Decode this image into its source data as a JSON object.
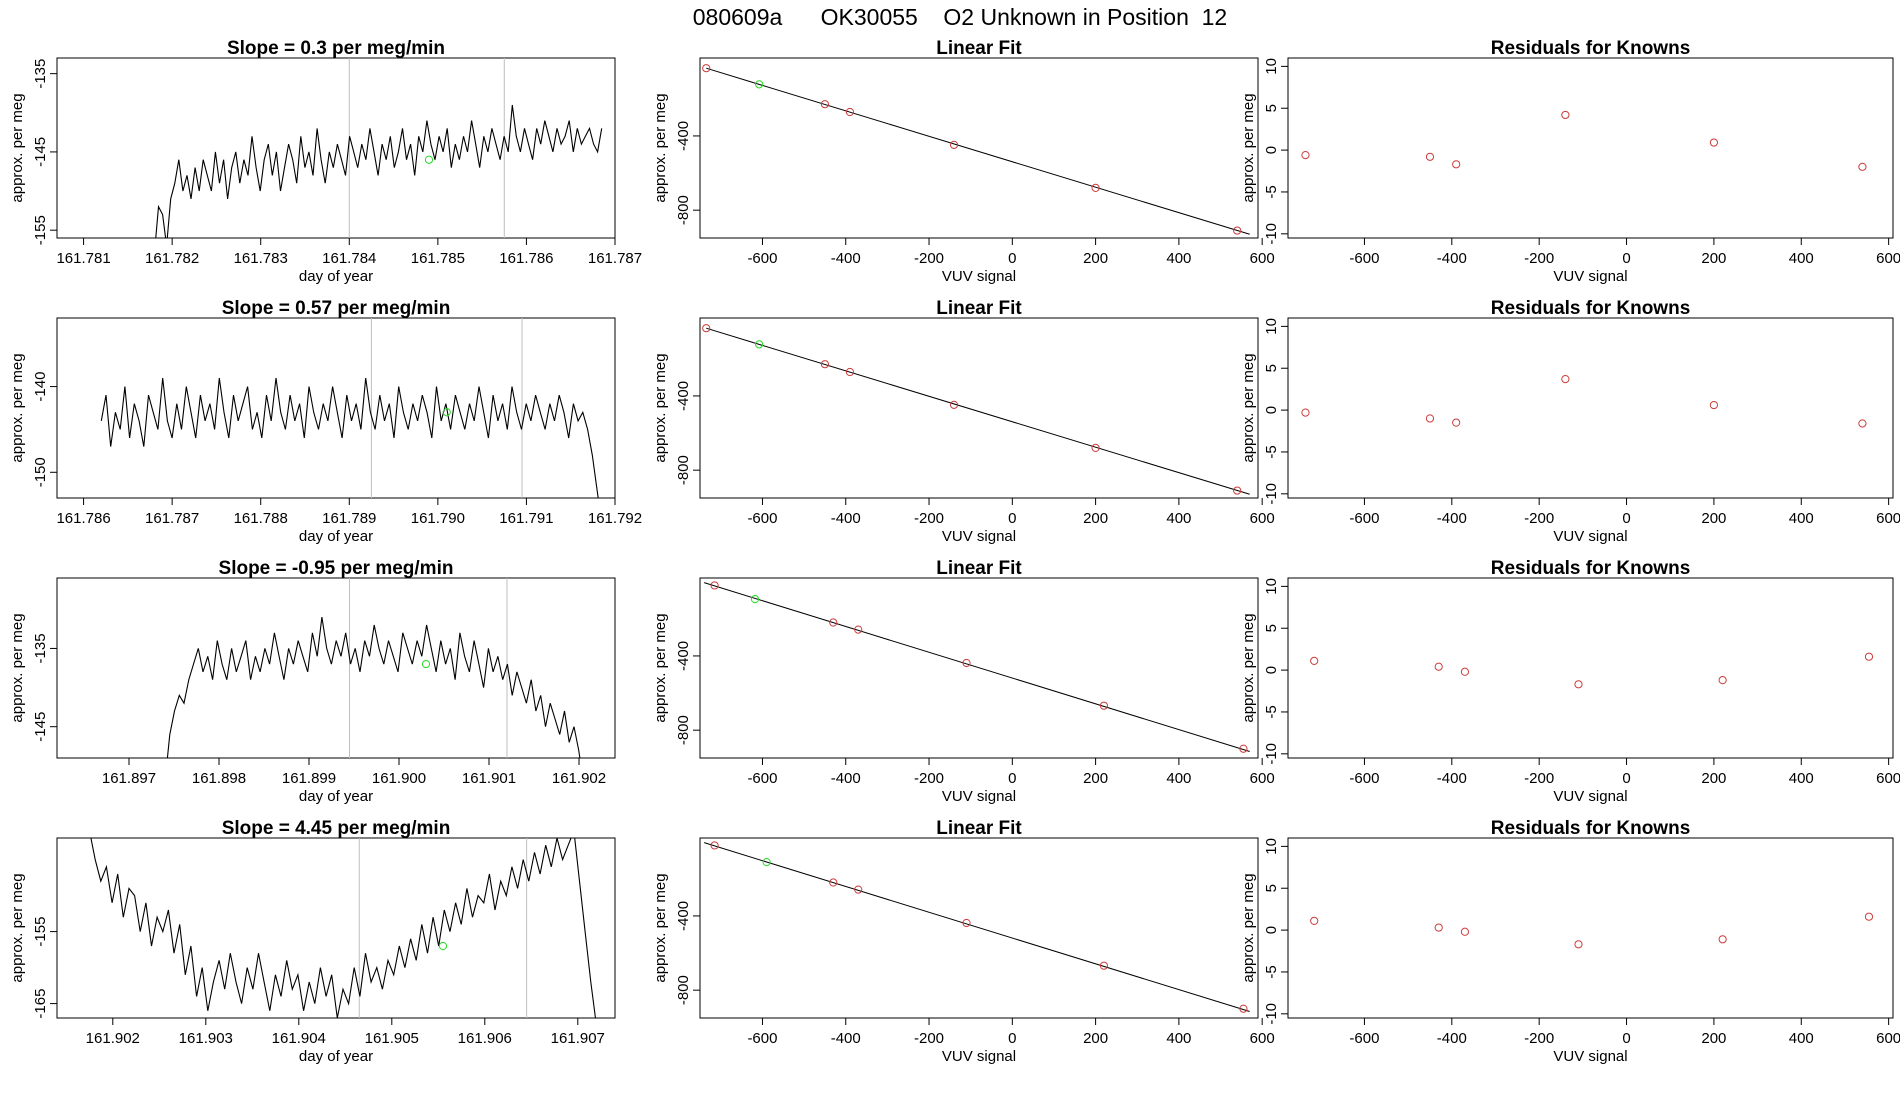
{
  "page": {
    "title": "080609a      OK30055    O2 Unknown in Position  12"
  },
  "colors": {
    "line": "#000000",
    "vline": "#bfbfbf",
    "known_point": "#cd3b3b",
    "unknown_point": "#22dd22",
    "box": "#000000"
  },
  "chart_data": [
    {
      "type": "line",
      "row": 0,
      "col": 0,
      "title": "Slope =  0.3  per meg/min",
      "xlabel": "day of year",
      "ylabel": "approx. per meg",
      "xlim": [
        161.7807,
        161.787
      ],
      "ylim": [
        -156,
        -133
      ],
      "xticks": [
        161.781,
        161.782,
        161.783,
        161.784,
        161.785,
        161.786,
        161.787
      ],
      "xtick_labels": [
        "161.781",
        "161.782",
        "161.783",
        "161.784",
        "161.785",
        "161.786",
        "161.787"
      ],
      "yticks": [
        -135,
        -145,
        -155
      ],
      "ytick_labels": [
        "-135",
        "-145",
        "-155"
      ],
      "vlines": [
        161.784,
        161.78575
      ],
      "series_x_range": [
        161.7818,
        161.78685
      ],
      "series": [
        -158,
        -152,
        -153,
        -157,
        -151,
        -149,
        -146,
        -150,
        -148,
        -151,
        -147,
        -150,
        -146,
        -148,
        -150,
        -145,
        -149,
        -146,
        -151,
        -147,
        -145,
        -149,
        -146,
        -148,
        -143,
        -147,
        -150,
        -146,
        -144,
        -148,
        -145,
        -150,
        -147,
        -144,
        -146,
        -149,
        -143,
        -147,
        -145,
        -148,
        -142,
        -146,
        -149,
        -145,
        -147,
        -144,
        -146,
        -148,
        -143,
        -145,
        -147,
        -144,
        -146,
        -142,
        -145,
        -148,
        -144,
        -146,
        -143,
        -147,
        -145,
        -142,
        -146,
        -144,
        -148,
        -143,
        -145,
        -141,
        -144,
        -146,
        -143,
        -145,
        -142,
        -147,
        -144,
        -146,
        -143,
        -145,
        -141,
        -144,
        -147,
        -143,
        -145,
        -142,
        -144,
        -146,
        -143,
        -145,
        -139,
        -143,
        -145,
        -142,
        -144,
        -146,
        -142,
        -144,
        -141,
        -143,
        -145,
        -142,
        -144,
        -143,
        -141,
        -145,
        -142,
        -144,
        -143,
        -142,
        -144,
        -145,
        -142
      ],
      "highlight": {
        "x": 161.7849,
        "y": -146
      }
    },
    {
      "type": "scatter",
      "row": 0,
      "col": 1,
      "title": "Linear Fit",
      "xlabel": "VUV signal",
      "ylabel": "approx. per meg",
      "xlim": [
        -750,
        590
      ],
      "ylim": [
        -950,
        20
      ],
      "xticks": [
        -600,
        -400,
        -200,
        0,
        200,
        400,
        600
      ],
      "xtick_labels": [
        "-600",
        "-400",
        "-200",
        "0",
        "200",
        "400",
        "600"
      ],
      "yticks": [
        -400,
        -800
      ],
      "ytick_labels": [
        "-400",
        "-800"
      ],
      "points": [
        [
          -735,
          -35
        ],
        [
          -450,
          -229
        ],
        [
          -390,
          -271
        ],
        [
          -140,
          -448
        ],
        [
          200,
          -680
        ],
        [
          540,
          -910
        ]
      ],
      "highlight": {
        "x": -608,
        "y": -122
      },
      "fit": {
        "x": [
          -735,
          570
        ],
        "y": [
          -35,
          -930
        ]
      }
    },
    {
      "type": "scatter",
      "row": 0,
      "col": 2,
      "title": "Residuals for Knowns",
      "xlabel": "VUV signal",
      "ylabel": "approx. per meg",
      "xlim": [
        -775,
        610
      ],
      "ylim": [
        -10.5,
        11
      ],
      "xticks": [
        -600,
        -400,
        -200,
        0,
        200,
        400,
        600
      ],
      "xtick_labels": [
        "-600",
        "-400",
        "-200",
        "0",
        "200",
        "400",
        "600"
      ],
      "yticks": [
        10,
        5,
        0,
        -5,
        -10
      ],
      "ytick_labels": [
        "10",
        "5",
        "0",
        "-5",
        "-10"
      ],
      "points": [
        [
          -735,
          -0.6
        ],
        [
          -450,
          -0.8
        ],
        [
          -390,
          -1.7
        ],
        [
          -140,
          4.2
        ],
        [
          200,
          0.9
        ],
        [
          540,
          -2
        ]
      ]
    },
    {
      "type": "line",
      "row": 1,
      "col": 0,
      "title": "Slope =  0.57  per meg/min",
      "xlabel": "day of year",
      "ylabel": "approx. per meg",
      "xlim": [
        161.7857,
        161.792
      ],
      "ylim": [
        -153,
        -132
      ],
      "xticks": [
        161.786,
        161.787,
        161.788,
        161.789,
        161.79,
        161.791,
        161.792
      ],
      "xtick_labels": [
        "161.786",
        "161.787",
        "161.788",
        "161.789",
        "161.790",
        "161.791",
        "161.792"
      ],
      "yticks": [
        -140,
        -150
      ],
      "ytick_labels": [
        "-140",
        "-150"
      ],
      "vlines": [
        161.78925,
        161.79095
      ],
      "series_x_range": [
        161.7862,
        161.79185
      ],
      "series": [
        -144,
        -141,
        -147,
        -143,
        -145,
        -140,
        -146,
        -142,
        -144,
        -147,
        -141,
        -143,
        -145,
        -139,
        -144,
        -146,
        -142,
        -145,
        -140,
        -143,
        -146,
        -141,
        -144,
        -142,
        -145,
        -139,
        -143,
        -146,
        -141,
        -144,
        -142,
        -140,
        -145,
        -143,
        -146,
        -141,
        -144,
        -139,
        -143,
        -145,
        -141,
        -144,
        -142,
        -146,
        -140,
        -143,
        -145,
        -142,
        -144,
        -140,
        -143,
        -146,
        -141,
        -144,
        -142,
        -145,
        -139,
        -143,
        -145,
        -141,
        -144,
        -142,
        -146,
        -140,
        -143,
        -145,
        -142,
        -144,
        -141,
        -143,
        -146,
        -140,
        -144,
        -142,
        -145,
        -141,
        -143,
        -145,
        -142,
        -144,
        -140,
        -143,
        -146,
        -141,
        -144,
        -142,
        -145,
        -140,
        -143,
        -145,
        -142,
        -144,
        -141,
        -143,
        -145,
        -142,
        -144,
        -141,
        -143,
        -146,
        -142,
        -144,
        -143,
        -145,
        -148,
        -152,
        -156
      ],
      "highlight": {
        "x": 161.7901,
        "y": -143
      }
    },
    {
      "type": "scatter",
      "row": 1,
      "col": 1,
      "title": "Linear Fit",
      "xlabel": "VUV signal",
      "ylabel": "approx. per meg",
      "xlim": [
        -750,
        590
      ],
      "ylim": [
        -950,
        20
      ],
      "xticks": [
        -600,
        -400,
        -200,
        0,
        200,
        400,
        600
      ],
      "xtick_labels": [
        "-600",
        "-400",
        "-200",
        "0",
        "200",
        "400",
        "600"
      ],
      "yticks": [
        -400,
        -800
      ],
      "ytick_labels": [
        "-400",
        "-800"
      ],
      "points": [
        [
          -735,
          -35
        ],
        [
          -450,
          -229
        ],
        [
          -390,
          -271
        ],
        [
          -140,
          -448
        ],
        [
          200,
          -680
        ],
        [
          540,
          -910
        ]
      ],
      "highlight": {
        "x": -608,
        "y": -122
      },
      "fit": {
        "x": [
          -735,
          570
        ],
        "y": [
          -35,
          -930
        ]
      }
    },
    {
      "type": "scatter",
      "row": 1,
      "col": 2,
      "title": "Residuals for Knowns",
      "xlabel": "VUV signal",
      "ylabel": "approx. per meg",
      "xlim": [
        -775,
        610
      ],
      "ylim": [
        -10.5,
        11
      ],
      "xticks": [
        -600,
        -400,
        -200,
        0,
        200,
        400,
        600
      ],
      "xtick_labels": [
        "-600",
        "-400",
        "-200",
        "0",
        "200",
        "400",
        "600"
      ],
      "yticks": [
        10,
        5,
        0,
        -5,
        -10
      ],
      "ytick_labels": [
        "10",
        "5",
        "0",
        "-5",
        "-10"
      ],
      "points": [
        [
          -735,
          -0.3
        ],
        [
          -450,
          -1
        ],
        [
          -390,
          -1.5
        ],
        [
          -140,
          3.7
        ],
        [
          200,
          0.6
        ],
        [
          540,
          -1.6
        ]
      ]
    },
    {
      "type": "line",
      "row": 2,
      "col": 0,
      "title": "Slope =  -0.95  per meg/min",
      "xlabel": "day of year",
      "ylabel": "approx. per meg",
      "xlim": [
        161.8962,
        161.9024
      ],
      "ylim": [
        -149,
        -126
      ],
      "xticks": [
        161.897,
        161.898,
        161.899,
        161.9,
        161.901,
        161.902
      ],
      "xtick_labels": [
        "161.897",
        "161.898",
        "161.899",
        "161.900",
        "161.901",
        "161.902"
      ],
      "yticks": [
        -135,
        -145
      ],
      "ytick_labels": [
        "-135",
        "-145"
      ],
      "vlines": [
        161.89945,
        161.9012
      ],
      "series_x_range": [
        161.8974,
        161.90205
      ],
      "series": [
        -152,
        -146,
        -143,
        -141,
        -142,
        -139,
        -137,
        -135,
        -138,
        -136,
        -139,
        -134,
        -137,
        -139,
        -135,
        -138,
        -136,
        -134,
        -139,
        -136,
        -138,
        -135,
        -137,
        -133,
        -136,
        -139,
        -135,
        -137,
        -134,
        -136,
        -138,
        -133,
        -136,
        -131,
        -135,
        -137,
        -134,
        -136,
        -133,
        -137,
        -135,
        -138,
        -134,
        -136,
        -132,
        -135,
        -137,
        -134,
        -136,
        -138,
        -133,
        -135,
        -137,
        -134,
        -136,
        -132,
        -135,
        -138,
        -134,
        -137,
        -135,
        -139,
        -133,
        -136,
        -138,
        -134,
        -137,
        -140,
        -135,
        -138,
        -136,
        -139,
        -137,
        -141,
        -138,
        -140,
        -142,
        -139,
        -143,
        -141,
        -145,
        -142,
        -144,
        -146,
        -143,
        -147,
        -145,
        -148,
        -152
      ],
      "highlight": {
        "x": 161.9003,
        "y": -137
      }
    },
    {
      "type": "scatter",
      "row": 2,
      "col": 1,
      "title": "Linear Fit",
      "xlabel": "VUV signal",
      "ylabel": "approx. per meg",
      "xlim": [
        -750,
        590
      ],
      "ylim": [
        -950,
        20
      ],
      "xticks": [
        -600,
        -400,
        -200,
        0,
        200,
        400,
        600
      ],
      "xtick_labels": [
        "-600",
        "-400",
        "-200",
        "0",
        "200",
        "400",
        "600"
      ],
      "yticks": [
        -400,
        -800
      ],
      "ytick_labels": [
        "-400",
        "-800"
      ],
      "points": [
        [
          -715,
          -20
        ],
        [
          -430,
          -220
        ],
        [
          -370,
          -258
        ],
        [
          -110,
          -438
        ],
        [
          220,
          -668
        ],
        [
          555,
          -900
        ]
      ],
      "highlight": {
        "x": -618,
        "y": -94
      },
      "fit": {
        "x": [
          -740,
          570
        ],
        "y": [
          -5,
          -915
        ]
      }
    },
    {
      "type": "scatter",
      "row": 2,
      "col": 2,
      "title": "Residuals for Knowns",
      "xlabel": "VUV signal",
      "ylabel": "approx. per meg",
      "xlim": [
        -775,
        610
      ],
      "ylim": [
        -10.5,
        11
      ],
      "xticks": [
        -600,
        -400,
        -200,
        0,
        200,
        400,
        600
      ],
      "xtick_labels": [
        "-600",
        "-400",
        "-200",
        "0",
        "200",
        "400",
        "600"
      ],
      "yticks": [
        10,
        5,
        0,
        -5,
        -10
      ],
      "ytick_labels": [
        "10",
        "5",
        "0",
        "-5",
        "-10"
      ],
      "points": [
        [
          -715,
          1.1
        ],
        [
          -430,
          0.4
        ],
        [
          -370,
          -0.2
        ],
        [
          -110,
          -1.7
        ],
        [
          220,
          -1.2
        ],
        [
          555,
          1.6
        ]
      ]
    },
    {
      "type": "line",
      "row": 3,
      "col": 0,
      "title": "Slope =  4.45  per meg/min",
      "xlabel": "day of year",
      "ylabel": "approx. per meg",
      "xlim": [
        161.9014,
        161.9074
      ],
      "ylim": [
        -167,
        -142
      ],
      "xticks": [
        161.902,
        161.903,
        161.904,
        161.905,
        161.906,
        161.907
      ],
      "xtick_labels": [
        "161.902",
        "161.903",
        "161.904",
        "161.905",
        "161.906",
        "161.907"
      ],
      "yticks": [
        -155,
        -165
      ],
      "ytick_labels": [
        "-155",
        "-165"
      ],
      "vlines": [
        161.90465,
        161.90645
      ],
      "series_x_range": [
        161.90175,
        161.9072
      ],
      "series": [
        -141,
        -145,
        -148,
        -146,
        -151,
        -147,
        -153,
        -149,
        -150,
        -155,
        -151,
        -157,
        -153,
        -155,
        -152,
        -158,
        -154,
        -161,
        -157,
        -164,
        -160,
        -166,
        -162,
        -159,
        -163,
        -158,
        -162,
        -165,
        -160,
        -163,
        -158,
        -162,
        -166,
        -161,
        -164,
        -159,
        -163,
        -161,
        -166,
        -162,
        -165,
        -160,
        -164,
        -161,
        -167,
        -163,
        -165,
        -160,
        -164,
        -158,
        -162,
        -160,
        -163,
        -159,
        -161,
        -157,
        -160,
        -156,
        -159,
        -154,
        -158,
        -153,
        -157,
        -152,
        -155,
        -151,
        -154,
        -149,
        -153,
        -150,
        -151,
        -147,
        -152,
        -148,
        -150,
        -146,
        -149,
        -145,
        -148,
        -144,
        -147,
        -143,
        -146,
        -142,
        -145,
        -143,
        -141,
        -148,
        -155,
        -162,
        -168
      ],
      "highlight": {
        "x": 161.90555,
        "y": -157
      }
    },
    {
      "type": "scatter",
      "row": 3,
      "col": 1,
      "title": "Linear Fit",
      "xlabel": "VUV signal",
      "ylabel": "approx. per meg",
      "xlim": [
        -750,
        590
      ],
      "ylim": [
        -950,
        20
      ],
      "xticks": [
        -600,
        -400,
        -200,
        0,
        200,
        400,
        600
      ],
      "xtick_labels": [
        "-600",
        "-400",
        "-200",
        "0",
        "200",
        "400",
        "600"
      ],
      "yticks": [
        -400,
        -800
      ],
      "ytick_labels": [
        "-400",
        "-800"
      ],
      "points": [
        [
          -715,
          -20
        ],
        [
          -430,
          -220
        ],
        [
          -370,
          -258
        ],
        [
          -110,
          -438
        ],
        [
          220,
          -668
        ],
        [
          555,
          -900
        ]
      ],
      "highlight": {
        "x": -590,
        "y": -110
      },
      "fit": {
        "x": [
          -740,
          570
        ],
        "y": [
          -5,
          -915
        ]
      }
    },
    {
      "type": "scatter",
      "row": 3,
      "col": 2,
      "title": "Residuals for Knowns",
      "xlabel": "VUV signal",
      "ylabel": "approx. per meg",
      "xlim": [
        -775,
        610
      ],
      "ylim": [
        -10.5,
        11
      ],
      "xticks": [
        -600,
        -400,
        -200,
        0,
        200,
        400,
        600
      ],
      "xtick_labels": [
        "-600",
        "-400",
        "-200",
        "0",
        "200",
        "400",
        "600"
      ],
      "yticks": [
        10,
        5,
        0,
        -5,
        -10
      ],
      "ytick_labels": [
        "10",
        "5",
        "0",
        "-5",
        "-10"
      ],
      "points": [
        [
          -715,
          1.1
        ],
        [
          -430,
          0.3
        ],
        [
          -370,
          -0.2
        ],
        [
          -110,
          -1.7
        ],
        [
          220,
          -1.1
        ],
        [
          555,
          1.6
        ]
      ]
    }
  ]
}
